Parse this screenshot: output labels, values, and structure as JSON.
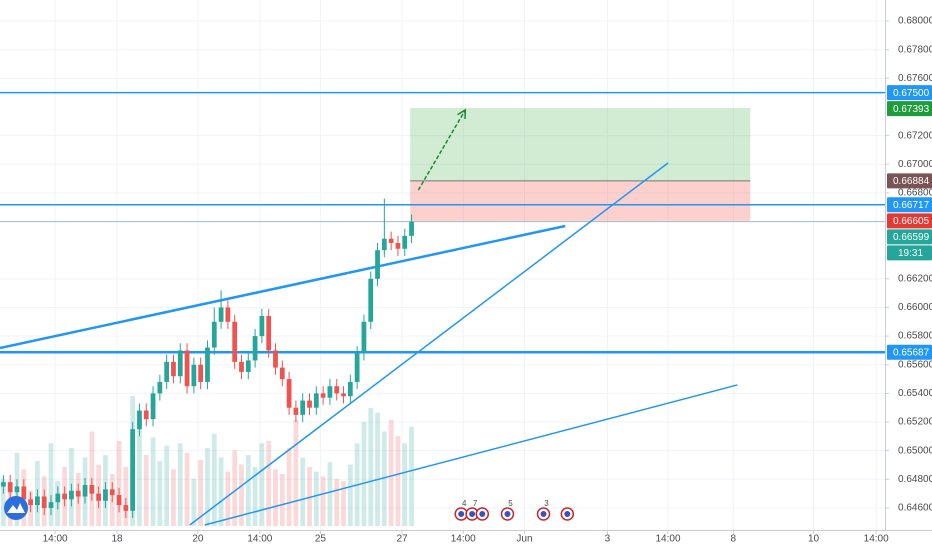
{
  "chart_data": {
    "type": "candlestick",
    "xlim": [
      -0.5,
      129.6
    ],
    "ylim": [
      0.64446,
      0.68147
    ],
    "xticks": [
      {
        "value": 7.6,
        "label": "14:00"
      },
      {
        "value": 16.7,
        "label": "18"
      },
      {
        "value": 28.6,
        "label": "20"
      },
      {
        "value": 37.7,
        "label": "14:00"
      },
      {
        "value": 46.6,
        "label": "25"
      },
      {
        "value": 58.6,
        "label": "27"
      },
      {
        "value": 67.6,
        "label": "14:00"
      },
      {
        "value": 76.6,
        "label": "Jun"
      },
      {
        "value": 88.8,
        "label": "3"
      },
      {
        "value": 97.7,
        "label": "14:00"
      },
      {
        "value": 107.3,
        "label": "8"
      },
      {
        "value": 119.1,
        "label": "10"
      },
      {
        "value": 128.3,
        "label": "14:00"
      }
    ],
    "yticks": [
      {
        "value": 0.68,
        "label": "0.68000"
      },
      {
        "value": 0.678,
        "label": "0.67800"
      },
      {
        "value": 0.676,
        "label": "0.67600"
      },
      {
        "value": 0.672,
        "label": "0.67200"
      },
      {
        "value": 0.67,
        "label": "0.67000"
      },
      {
        "value": 0.668,
        "label": "0.66800"
      },
      {
        "value": 0.662,
        "label": "0.66200"
      },
      {
        "value": 0.66,
        "label": "0.66000"
      },
      {
        "value": 0.658,
        "label": "0.65800"
      },
      {
        "value": 0.656,
        "label": "0.65600"
      },
      {
        "value": 0.654,
        "label": "0.65400"
      },
      {
        "value": 0.652,
        "label": "0.65200"
      },
      {
        "value": 0.65,
        "label": "0.65000"
      },
      {
        "value": 0.648,
        "label": "0.64800"
      },
      {
        "value": 0.646,
        "label": "0.64600"
      }
    ],
    "grid": true,
    "up_color": "#26a69a",
    "down_color": "#ef5350",
    "open": [
      0.6475,
      0.6478,
      0.6471,
      0.6475,
      0.6466,
      0.6462,
      0.6468,
      0.646,
      0.6464,
      0.647,
      0.6466,
      0.6472,
      0.6468,
      0.6476,
      0.647,
      0.6465,
      0.6473,
      0.6469,
      0.6462,
      0.6458,
      0.6515,
      0.6528,
      0.6522,
      0.654,
      0.6548,
      0.6562,
      0.6552,
      0.657,
      0.6545,
      0.656,
      0.6548,
      0.6572,
      0.659,
      0.66,
      0.659,
      0.6562,
      0.6555,
      0.6563,
      0.658,
      0.6594,
      0.657,
      0.6558,
      0.655,
      0.653,
      0.6525,
      0.6535,
      0.653,
      0.654,
      0.6537,
      0.6545,
      0.654,
      0.6538,
      0.6548,
      0.6568,
      0.659,
      0.662,
      0.664,
      0.6648,
      0.6645,
      0.6641,
      0.665
    ],
    "high": [
      0.6483,
      0.6483,
      0.648,
      0.648,
      0.6471,
      0.6473,
      0.6473,
      0.6469,
      0.6475,
      0.6475,
      0.6477,
      0.6477,
      0.6481,
      0.6481,
      0.6475,
      0.6478,
      0.6478,
      0.6474,
      0.6467,
      0.652,
      0.6533,
      0.6533,
      0.6545,
      0.6553,
      0.6567,
      0.6567,
      0.6575,
      0.6575,
      0.6565,
      0.6565,
      0.6577,
      0.66,
      0.6612,
      0.6605,
      0.6595,
      0.6567,
      0.6568,
      0.6585,
      0.6599,
      0.6599,
      0.6575,
      0.6563,
      0.6555,
      0.6535,
      0.654,
      0.654,
      0.6545,
      0.6545,
      0.655,
      0.655,
      0.6545,
      0.6553,
      0.6573,
      0.6595,
      0.6625,
      0.6645,
      0.6676,
      0.6653,
      0.665,
      0.6655,
      0.6665
    ],
    "low": [
      0.647,
      0.6466,
      0.6466,
      0.6461,
      0.6457,
      0.6457,
      0.6455,
      0.6455,
      0.6459,
      0.6461,
      0.6461,
      0.6463,
      0.6463,
      0.6465,
      0.646,
      0.646,
      0.6464,
      0.6457,
      0.6453,
      0.6453,
      0.651,
      0.6517,
      0.6517,
      0.6535,
      0.6543,
      0.6547,
      0.6547,
      0.654,
      0.654,
      0.6543,
      0.6543,
      0.6567,
      0.6585,
      0.6585,
      0.6557,
      0.655,
      0.655,
      0.6558,
      0.6575,
      0.6565,
      0.6553,
      0.6545,
      0.6525,
      0.652,
      0.652,
      0.6525,
      0.6525,
      0.6532,
      0.6532,
      0.6535,
      0.6533,
      0.6533,
      0.6543,
      0.6563,
      0.6585,
      0.6615,
      0.6635,
      0.664,
      0.6636,
      0.6636,
      0.6645
    ],
    "close": [
      0.6478,
      0.6471,
      0.6475,
      0.6466,
      0.6462,
      0.6468,
      0.646,
      0.6464,
      0.647,
      0.6466,
      0.6472,
      0.6468,
      0.6476,
      0.647,
      0.6465,
      0.6473,
      0.6469,
      0.6462,
      0.6458,
      0.6515,
      0.6528,
      0.6522,
      0.654,
      0.6548,
      0.6562,
      0.6552,
      0.657,
      0.6545,
      0.656,
      0.6548,
      0.6572,
      0.659,
      0.66,
      0.659,
      0.6562,
      0.6555,
      0.6563,
      0.658,
      0.6594,
      0.657,
      0.6558,
      0.655,
      0.653,
      0.6525,
      0.6535,
      0.653,
      0.654,
      0.6537,
      0.6545,
      0.654,
      0.6538,
      0.6548,
      0.6568,
      0.659,
      0.662,
      0.664,
      0.6648,
      0.6645,
      0.6641,
      0.665,
      0.66599
    ],
    "volume": [
      40,
      35,
      62,
      48,
      30,
      55,
      42,
      70,
      38,
      50,
      66,
      45,
      58,
      80,
      52,
      60,
      44,
      72,
      50,
      110,
      92,
      60,
      75,
      55,
      68,
      48,
      70,
      62,
      40,
      56,
      66,
      78,
      58,
      46,
      64,
      52,
      60,
      50,
      70,
      72,
      48,
      44,
      66,
      90,
      58,
      50,
      46,
      42,
      54,
      40,
      38,
      52,
      70,
      88,
      100,
      96,
      80,
      90,
      76,
      70,
      84
    ],
    "hlines": [
      {
        "value": 0.675,
        "label": "0.67500"
      },
      {
        "value": 0.66717,
        "label": "0.66717"
      },
      {
        "value": 0.65687,
        "label": "0.65687"
      }
    ],
    "trendlines": [
      {
        "x": [
          -0.5,
          82.6
        ],
        "y": [
          0.65717,
          0.66569
        ]
      },
      {
        "x": [
          27.4,
          97.7
        ],
        "y": [
          0.64481,
          0.67009
        ]
      },
      {
        "x": [
          29.6,
          107.9
        ],
        "y": [
          0.64481,
          0.65459
        ]
      }
    ],
    "position": {
      "x": [
        59.8,
        109.8
      ],
      "target": {
        "value": 0.67393,
        "label": "0.67393"
      },
      "entry": {
        "value": 0.66884,
        "label": "0.66884"
      },
      "stop": {
        "value": 0.66605,
        "label": "0.66605"
      }
    },
    "arrow": {
      "x": [
        61.0,
        67.9
      ],
      "y": [
        0.6682,
        0.67379
      ]
    },
    "last_price": {
      "value": 0.66599,
      "label": "0.66599",
      "countdown": "19:31"
    },
    "events": [
      {
        "x": 67.3,
        "label": "4"
      },
      {
        "x": 68.9,
        "label": "7"
      },
      {
        "x": 70.4
      },
      {
        "x": 74.1,
        "label": "5"
      },
      {
        "x": 79.4,
        "label": "3"
      },
      {
        "x": 82.9
      }
    ]
  }
}
